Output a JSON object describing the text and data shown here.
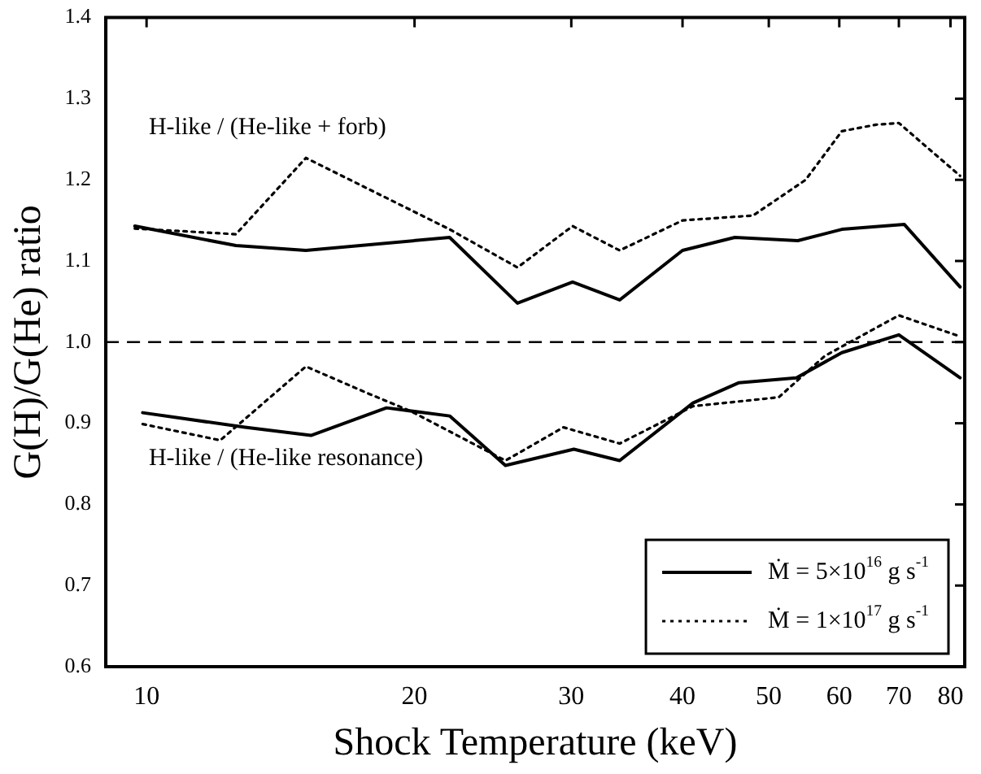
{
  "chart_data": {
    "type": "line",
    "xlabel": "Shock Temperature (keV)",
    "ylabel": "G(H)/G(He) ratio",
    "log": "x",
    "xlim": [
      9,
      83
    ],
    "xticks": [
      10,
      20,
      30,
      40,
      50,
      60,
      70,
      80
    ],
    "ylim": [
      0.6,
      1.4
    ],
    "yticks": [
      0.6,
      0.7,
      0.8,
      0.9,
      {
        "value": 1,
        "label": "1.0"
      },
      1.1,
      1.2,
      1.3,
      1.4
    ],
    "grid": false,
    "legend": "bottom right",
    "marker": "none",
    "ref_lines": [
      {
        "axis": "y",
        "value": 1,
        "line_style": "dashed",
        "color": "#000000"
      }
    ],
    "annotations": [
      "H-like / (He-like + forb)",
      "H-like / (He-like resonance)"
    ],
    "series": [
      {
        "name": "Ṁ = 5×10$^{16}$ g s$^{-1}$",
        "color": "#000000",
        "line_style": "solid",
        "x": [
          9.7,
          12.6,
          15.1,
          21.9,
          26.1,
          30.1,
          34,
          40,
          45.8,
          53.9,
          60.4,
          71,
          82
        ],
        "values": [
          1.143,
          1.119,
          1.113,
          1.129,
          1.048,
          1.074,
          1.052,
          1.113,
          1.129,
          1.125,
          1.139,
          1.145,
          1.068
        ]
      },
      {
        "name": "Ṁ = 1×10$^{17}$ g s$^{-1}$",
        "color": "#000000",
        "line_style": "dotted",
        "x": [
          9.7,
          12.6,
          15.1,
          21.9,
          26.1,
          30.1,
          34,
          40,
          48,
          55,
          60.4,
          66,
          70,
          82
        ],
        "values": [
          1.14,
          1.133,
          1.227,
          1.139,
          1.092,
          1.143,
          1.113,
          1.15,
          1.156,
          1.2,
          1.26,
          1.268,
          1.27,
          1.205
        ]
      },
      {
        "color": "#000000",
        "line_style": "solid",
        "x": [
          9.9,
          12.9,
          15.3,
          18.6,
          21.9,
          25.3,
          30.2,
          34,
          41.1,
          46.3,
          53.7,
          60.4,
          70,
          82
        ],
        "values": [
          0.913,
          0.895,
          0.885,
          0.919,
          0.909,
          0.848,
          0.868,
          0.854,
          0.925,
          0.95,
          0.956,
          0.987,
          1.009,
          0.956
        ]
      },
      {
        "color": "#000000",
        "line_style": "dotted",
        "x": [
          9.9,
          12.1,
          15.1,
          17.8,
          19.8,
          25.3,
          29.4,
          34,
          41.1,
          51.3,
          57.8,
          70,
          82
        ],
        "values": [
          0.899,
          0.879,
          0.97,
          0.936,
          0.915,
          0.854,
          0.895,
          0.875,
          0.921,
          0.932,
          0.983,
          1.033,
          1.007
        ]
      }
    ]
  }
}
